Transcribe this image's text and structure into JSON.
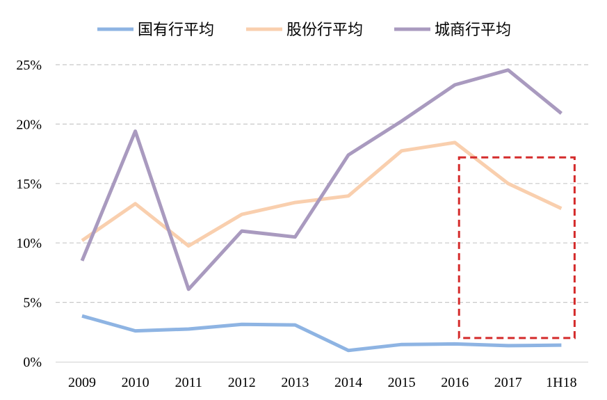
{
  "chart_data": {
    "type": "line",
    "categories": [
      "2009",
      "2010",
      "2011",
      "2012",
      "2013",
      "2014",
      "2015",
      "2016",
      "2017",
      "1H18"
    ],
    "ylim": [
      0,
      25
    ],
    "yticks": [
      0,
      5,
      10,
      15,
      20,
      25
    ],
    "ytick_labels": [
      "0%",
      "5%",
      "10%",
      "15%",
      "20%",
      "25%"
    ],
    "grid": "horizontal-dashed",
    "legend": "top",
    "series": [
      {
        "name": "国有行平均",
        "color": "#8EB4E3",
        "values": [
          3.85,
          2.6,
          2.75,
          3.15,
          3.1,
          0.95,
          1.45,
          1.5,
          1.35,
          1.4
        ]
      },
      {
        "name": "股份行平均",
        "color": "#F9CFAE",
        "values": [
          10.2,
          13.3,
          9.75,
          12.4,
          13.4,
          13.95,
          17.75,
          18.45,
          15.0,
          12.9
        ]
      },
      {
        "name": "城商行平均",
        "color": "#A99ABF",
        "values": [
          8.5,
          19.4,
          6.1,
          11.0,
          10.5,
          17.4,
          20.25,
          23.3,
          24.55,
          20.9
        ]
      }
    ],
    "annotations": [
      {
        "type": "dashed-box",
        "color": "#D42B2B",
        "x_from": "2016",
        "x_to": "1H18",
        "y_from": 2.0,
        "y_to": 17.2
      }
    ]
  }
}
